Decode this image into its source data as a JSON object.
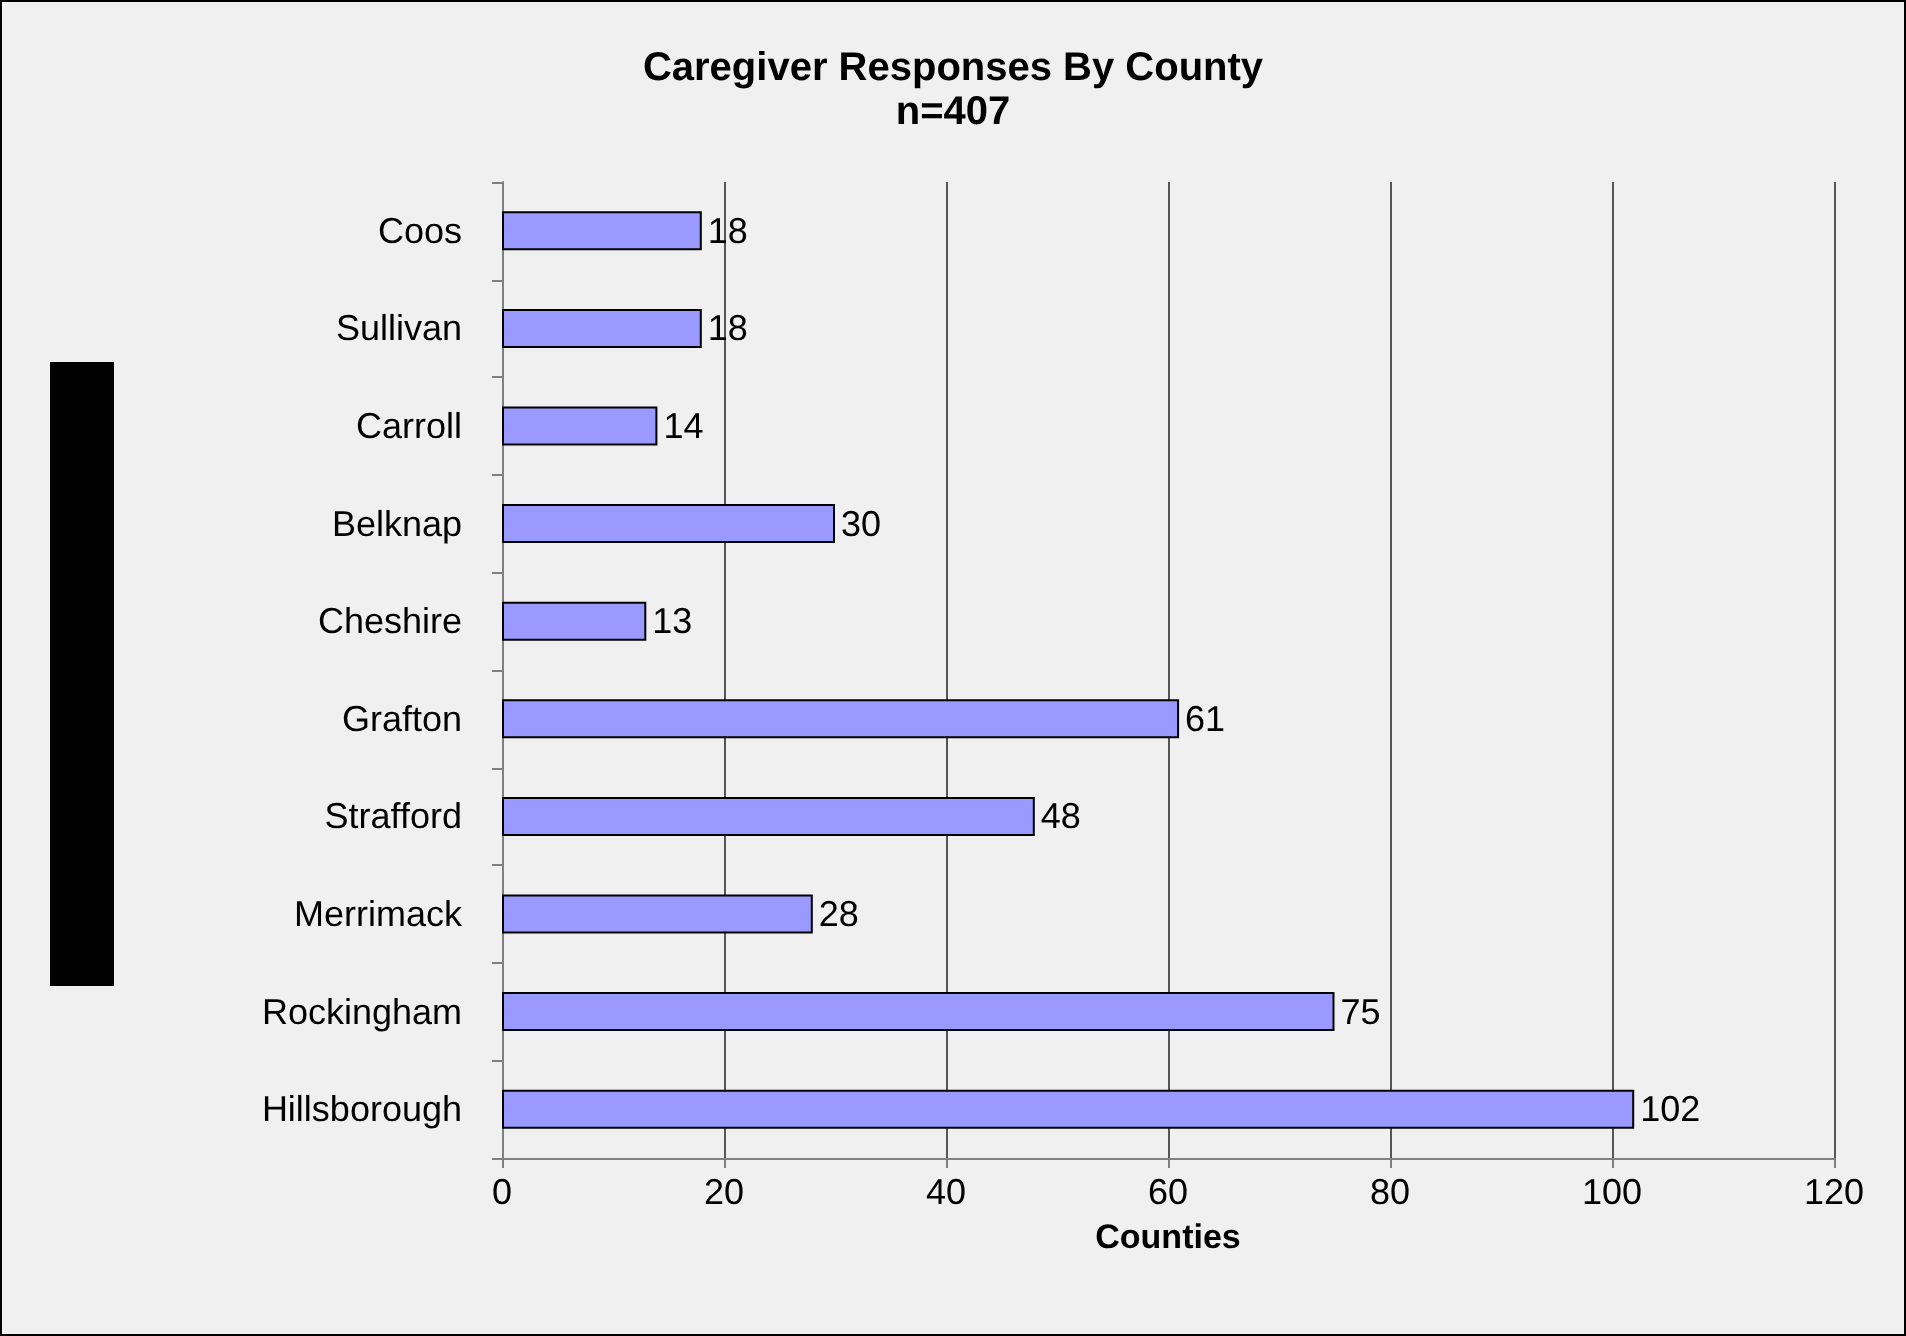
{
  "chart_data": {
    "type": "bar",
    "title": "Caregiver Responses By County",
    "subtitle": "n=407",
    "xlabel": "Counties",
    "orientation": "horizontal",
    "categories": [
      "Coos",
      "Sullivan",
      "Carroll",
      "Belknap",
      "Cheshire",
      "Grafton",
      "Strafford",
      "Merrimack",
      "Rockingham",
      "Hillsborough"
    ],
    "values": [
      18,
      18,
      14,
      30,
      13,
      61,
      48,
      28,
      75,
      102
    ],
    "color": "#9999ff",
    "xlim": [
      0,
      120
    ],
    "xticks": [
      0,
      20,
      40,
      60,
      80,
      100,
      120
    ],
    "grid": "x",
    "data_labels": true
  }
}
